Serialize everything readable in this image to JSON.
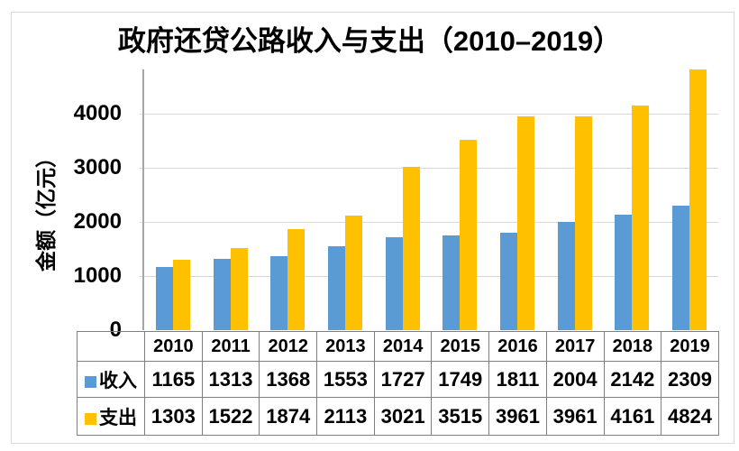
{
  "title": "政府还贷公路收入与支出（2010–2019）",
  "y_axis": {
    "label": "金额（亿元）"
  },
  "chart_data": {
    "type": "bar",
    "title": "政府还贷公路收入与支出（2010–2019）",
    "categories": [
      "2010",
      "2011",
      "2012",
      "2013",
      "2014",
      "2015",
      "2016",
      "2017",
      "2018",
      "2019"
    ],
    "series": [
      {
        "name": "收入",
        "color": "#5B9BD5",
        "values": [
          1165,
          1313,
          1368,
          1553,
          1727,
          1749,
          1811,
          2004,
          2142,
          2309
        ]
      },
      {
        "name": "支出",
        "color": "#FFC000",
        "values": [
          1303,
          1522,
          1874,
          2113,
          3021,
          3515,
          3961,
          3961,
          4161,
          4824
        ]
      }
    ],
    "xlabel": "",
    "ylabel": "金额（亿元）",
    "ylim": [
      0,
      4824
    ],
    "yticks": [
      0,
      1000,
      2000,
      3000,
      4000
    ],
    "grid": true,
    "legend_position": "data-table-left",
    "data_table_shown": true
  },
  "colors": {
    "income": "#5B9BD5",
    "expense": "#FFC000",
    "grid": "#d9d9d9",
    "axis_line": "#a6a6a6",
    "table_border": "#7f7f7f",
    "frame_border": "#d9d9d9",
    "text": "#000000",
    "background": "#ffffff"
  }
}
